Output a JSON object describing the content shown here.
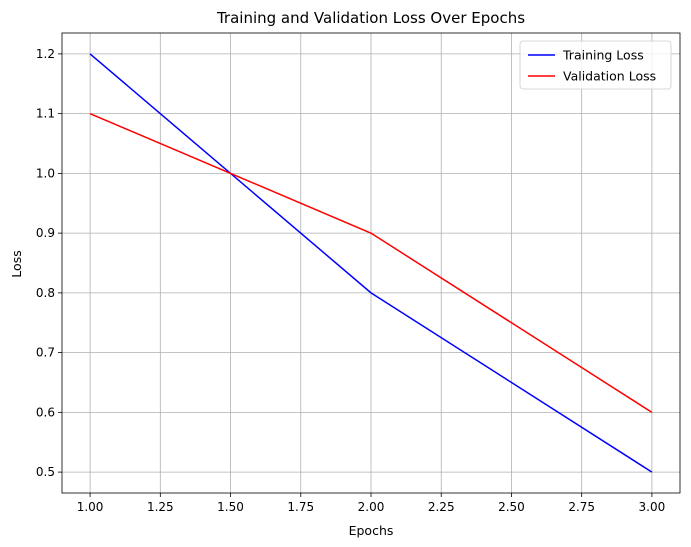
{
  "chart_data": {
    "type": "line",
    "title": "Training and Validation Loss Over Epochs",
    "xlabel": "Epochs",
    "ylabel": "Loss",
    "x": [
      1,
      2,
      3
    ],
    "series": [
      {
        "name": "Training Loss",
        "values": [
          1.2,
          0.8,
          0.5
        ],
        "color": "#0000ff"
      },
      {
        "name": "Validation Loss",
        "values": [
          1.1,
          0.9,
          0.6
        ],
        "color": "#ff0000"
      }
    ],
    "xlim": [
      0.9,
      3.1
    ],
    "ylim": [
      0.465,
      1.235
    ],
    "xticks": [
      "1.00",
      "1.25",
      "1.50",
      "1.75",
      "2.00",
      "2.25",
      "2.50",
      "2.75",
      "3.00"
    ],
    "yticks": [
      "0.5",
      "0.6",
      "0.7",
      "0.8",
      "0.9",
      "1.0",
      "1.1",
      "1.2"
    ],
    "grid": true,
    "legend_position": "top-right"
  }
}
